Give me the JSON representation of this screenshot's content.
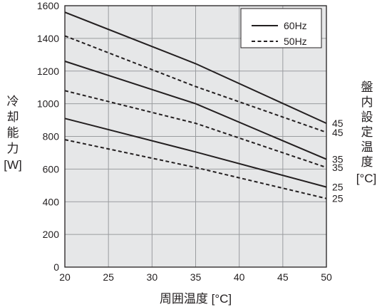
{
  "chart_data": {
    "type": "line",
    "xlabel": "周囲温度 [°C]",
    "ylabel": "冷却能力 [W]",
    "right_label": "盤内設定温度 [°C]",
    "xlim": [
      20,
      50
    ],
    "ylim": [
      0,
      1600
    ],
    "xticks": [
      20,
      25,
      30,
      35,
      40,
      45,
      50
    ],
    "yticks": [
      0,
      200,
      400,
      600,
      800,
      1000,
      1200,
      1400,
      1600
    ],
    "grid": true,
    "legend_position": "top-right",
    "legend": [
      {
        "label": "60Hz",
        "style": "solid"
      },
      {
        "label": "50Hz",
        "style": "dashed"
      }
    ],
    "series": [
      {
        "freq": "60Hz",
        "setpoint": "45",
        "style": "solid",
        "x": [
          20,
          35,
          50
        ],
        "y": [
          1560,
          1245,
          880
        ]
      },
      {
        "freq": "50Hz",
        "setpoint": "45",
        "style": "dashed",
        "x": [
          20,
          35,
          50
        ],
        "y": [
          1415,
          1105,
          825
        ]
      },
      {
        "freq": "60Hz",
        "setpoint": "35",
        "style": "solid",
        "x": [
          20,
          35,
          50
        ],
        "y": [
          1260,
          1000,
          660
        ]
      },
      {
        "freq": "50Hz",
        "setpoint": "35",
        "style": "dashed",
        "x": [
          20,
          35,
          50
        ],
        "y": [
          1080,
          880,
          610
        ]
      },
      {
        "freq": "60Hz",
        "setpoint": "25",
        "style": "solid",
        "x": [
          20,
          35,
          50
        ],
        "y": [
          910,
          705,
          490
        ]
      },
      {
        "freq": "50Hz",
        "setpoint": "25",
        "style": "dashed",
        "x": [
          20,
          35,
          50
        ],
        "y": [
          780,
          610,
          420
        ]
      }
    ],
    "colors": {
      "plot_bg": "#e6e7e8",
      "grid": "#9a9c9f",
      "line": "#231f20",
      "legend_bg": "#ffffff"
    }
  }
}
